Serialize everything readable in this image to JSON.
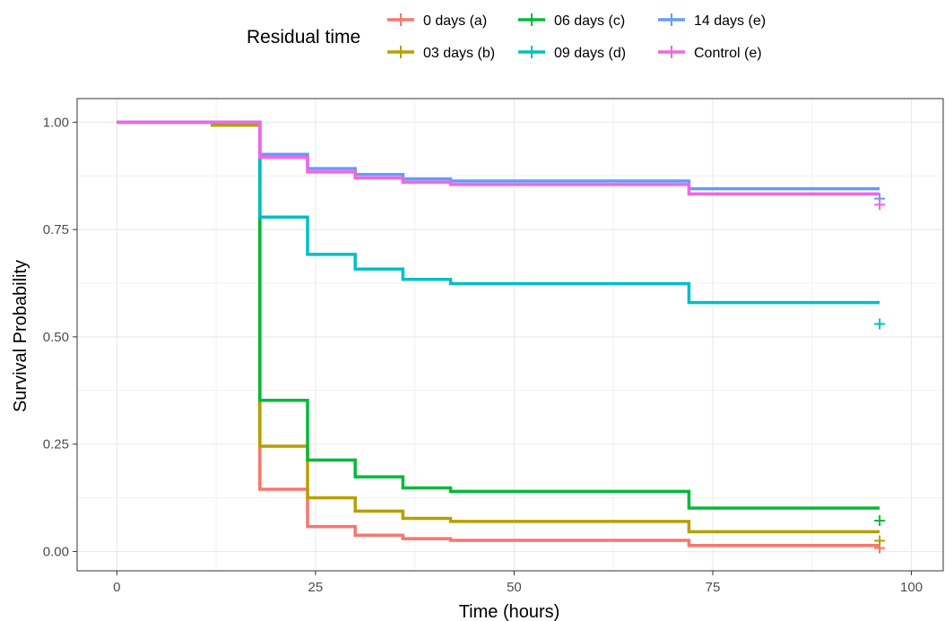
{
  "chart_data": {
    "type": "line",
    "subtype": "kaplan-meier step",
    "title": "",
    "xlabel": "Time (hours)",
    "ylabel": "Survival Probability",
    "xlim": [
      -5,
      104
    ],
    "ylim": [
      -0.045,
      1.055
    ],
    "x_ticks": [
      0,
      25,
      50,
      75,
      100
    ],
    "x_tick_labels": [
      "0",
      "25",
      "50",
      "75",
      "100"
    ],
    "y_ticks": [
      0,
      0.25,
      0.5,
      0.75,
      1
    ],
    "y_tick_labels": [
      "0.00",
      "0.25",
      "0.50",
      "0.75",
      "1.00"
    ],
    "grid": true,
    "legend": {
      "title": "Residual time",
      "position": "top"
    },
    "series": [
      {
        "name": "0 days (a)",
        "color": "#F8766D",
        "x": [
          0,
          12,
          18,
          24,
          30,
          36,
          42,
          72,
          96
        ],
        "y": [
          1.0,
          1.0,
          0.145,
          0.058,
          0.038,
          0.03,
          0.026,
          0.014,
          0.014
        ],
        "censor": [
          [
            96,
            0.008
          ]
        ]
      },
      {
        "name": "03 days (b)",
        "color": "#B79F00",
        "x": [
          0,
          12,
          18,
          24,
          30,
          36,
          42,
          72,
          96
        ],
        "y": [
          1.0,
          0.993,
          0.245,
          0.125,
          0.094,
          0.077,
          0.07,
          0.046,
          0.046
        ],
        "censor": [
          [
            96,
            0.025
          ]
        ]
      },
      {
        "name": "06 days (c)",
        "color": "#00BA38",
        "x": [
          0,
          18,
          24,
          30,
          36,
          42,
          72,
          96
        ],
        "y": [
          1.0,
          0.352,
          0.213,
          0.174,
          0.148,
          0.14,
          0.101,
          0.101
        ],
        "censor": [
          [
            96,
            0.072
          ]
        ]
      },
      {
        "name": "09 days (d)",
        "color": "#00BFC4",
        "x": [
          0,
          18,
          24,
          30,
          36,
          42,
          72,
          96
        ],
        "y": [
          1.0,
          0.779,
          0.692,
          0.658,
          0.634,
          0.624,
          0.58,
          0.58
        ],
        "censor": [
          [
            96,
            0.53
          ]
        ]
      },
      {
        "name": "14 days (e)",
        "color": "#619CFF",
        "x": [
          0,
          18,
          24,
          30,
          36,
          42,
          72,
          96
        ],
        "y": [
          1.0,
          0.925,
          0.892,
          0.878,
          0.868,
          0.863,
          0.845,
          0.845
        ],
        "censor": [
          [
            96,
            0.822
          ]
        ]
      },
      {
        "name": "Control (e)",
        "color": "#F564E3",
        "x": [
          0,
          18,
          24,
          30,
          36,
          42,
          72,
          96
        ],
        "y": [
          1.0,
          0.918,
          0.884,
          0.87,
          0.86,
          0.855,
          0.833,
          0.833
        ],
        "censor": [
          [
            96,
            0.808
          ]
        ]
      }
    ]
  }
}
